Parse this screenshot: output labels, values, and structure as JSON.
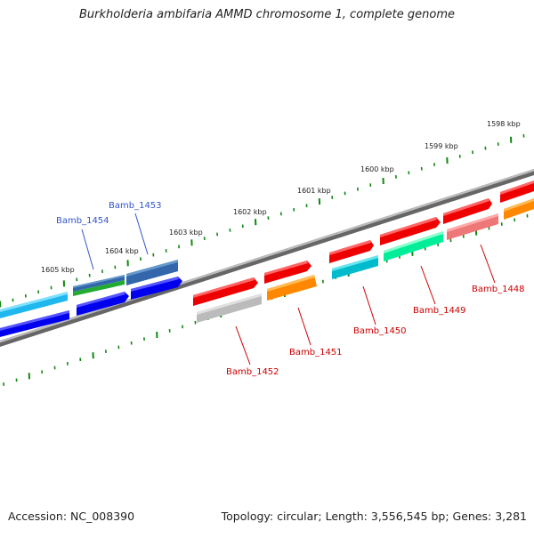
{
  "title": "Burkholderia ambifaria AMMD chromosome 1, complete genome",
  "footer": {
    "accession": "Accession: NC_008390",
    "summary": "Topology: circular; Length: 3,556,545 bp; Genes: 3,281"
  },
  "scale_labels": [
    "1598 kbp",
    "1599 kbp",
    "1600 kbp",
    "1601 kbp",
    "1602 kbp",
    "1603 kbp",
    "1604 kbp",
    "1605 kbp"
  ],
  "genes": [
    {
      "label": "Bamb_1454",
      "color": "#3355cc",
      "fill": "#2255dd"
    },
    {
      "label": "Bamb_1453",
      "color": "#3355cc",
      "fill": "#3366aa"
    },
    {
      "label": "Bamb_1452",
      "color": "#cc0000",
      "fill": "#bbbbbb"
    },
    {
      "label": "Bamb_1451",
      "color": "#cc0000",
      "fill": "#ff8800"
    },
    {
      "label": "Bamb_1450",
      "color": "#cc0000",
      "fill": "#00bbcc"
    },
    {
      "label": "Bamb_1449",
      "color": "#cc0000",
      "fill": "#00ee99"
    },
    {
      "label": "Bamb_1448",
      "color": "#cc0000",
      "fill": "#ee7777"
    }
  ],
  "colors": {
    "backbone": "#777777",
    "tick": "#118811",
    "feature_red": "#ee0000",
    "feature_blue": "#0000ee",
    "feature_cyan": "#00bbee"
  }
}
